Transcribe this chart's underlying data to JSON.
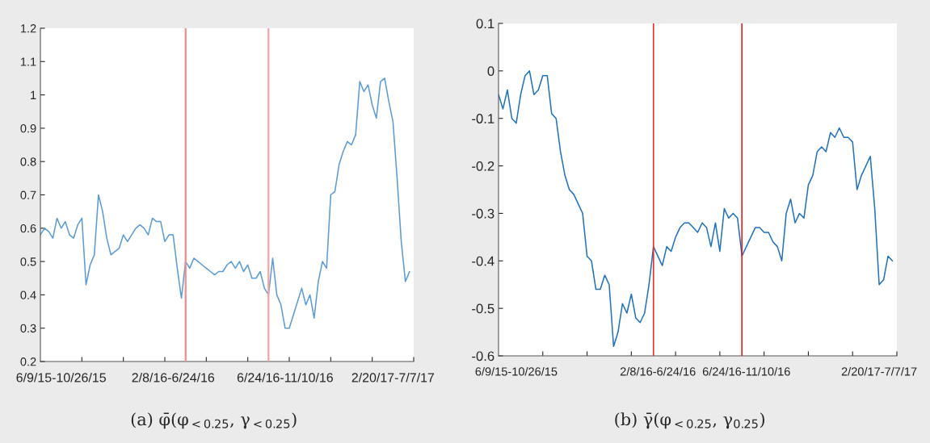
{
  "chart_data": [
    {
      "type": "line",
      "annotations": [
        "(a) φ̄(φ$_{<0.25}$, γ$_{<0.25}$)"
      ],
      "categories": [
        null,
        null,
        null,
        null,
        null,
        "6/9/15-10/26/15",
        null,
        null,
        null,
        null,
        null,
        null,
        null,
        null,
        null,
        null,
        null,
        null,
        null,
        null,
        null,
        null,
        null,
        null,
        null,
        null,
        null,
        null,
        null,
        null,
        null,
        null,
        "2/8/16-6/24/16",
        null,
        null,
        null,
        null,
        null,
        null,
        null,
        null,
        null,
        null,
        null,
        null,
        null,
        null,
        null,
        null,
        null,
        null,
        null,
        null,
        null,
        null,
        null,
        null,
        null,
        null,
        "6/24/16-11/10/16",
        null,
        null,
        null,
        null,
        null,
        null,
        null,
        null,
        null,
        null,
        null,
        null,
        null,
        null,
        null,
        null,
        null,
        null,
        null,
        null,
        null,
        null,
        null,
        null,
        null,
        "2/20/17-7/7/17",
        null,
        null,
        null,
        null
      ],
      "series": [
        {
          "color": "#5b9bd5",
          "values": [
            0.58,
            0.6,
            0.59,
            0.57,
            0.63,
            0.6,
            0.62,
            0.58,
            0.57,
            0.61,
            0.63,
            0.43,
            0.49,
            0.52,
            0.7,
            0.65,
            0.57,
            0.52,
            0.53,
            0.54,
            0.58,
            0.56,
            0.58,
            0.6,
            0.61,
            0.6,
            0.58,
            0.63,
            0.62,
            0.62,
            0.56,
            0.58,
            0.58,
            0.48,
            0.39,
            0.5,
            0.48,
            0.51,
            0.5,
            0.49,
            0.48,
            0.47,
            0.46,
            0.47,
            0.47,
            0.49,
            0.5,
            0.48,
            0.5,
            0.47,
            0.49,
            0.45,
            0.45,
            0.47,
            0.42,
            0.4,
            0.51,
            0.4,
            0.37,
            0.3,
            0.3,
            0.34,
            0.38,
            0.42,
            0.37,
            0.4,
            0.33,
            0.44,
            0.5,
            0.48,
            0.7,
            0.71,
            0.79,
            0.83,
            0.86,
            0.85,
            0.88,
            1.04,
            1.01,
            1.03,
            0.97,
            0.93,
            1.04,
            1.05,
            0.98,
            0.92,
            0.75,
            0.56,
            0.44,
            0.47
          ]
        }
      ],
      "ylim": [
        0.2,
        1.2
      ],
      "yticks": [
        0.2,
        0.3,
        0.4,
        0.5,
        0.6,
        0.7,
        0.8,
        0.9,
        1,
        1.1,
        1.2
      ],
      "grid": false,
      "line_style": "solid"
    },
    {
      "type": "line",
      "annotations": [
        "(b) γ̄(φ$_{<0.25}$, γ$_{0.25}$)"
      ],
      "categories": [
        null,
        null,
        null,
        null,
        "6/9/15-10/26/15",
        null,
        null,
        null,
        null,
        null,
        null,
        null,
        null,
        null,
        null,
        null,
        null,
        null,
        null,
        null,
        null,
        null,
        null,
        null,
        null,
        null,
        null,
        null,
        null,
        null,
        null,
        null,
        null,
        null,
        null,
        null,
        "2/8/16-6/24/16",
        null,
        null,
        null,
        null,
        null,
        null,
        null,
        null,
        null,
        null,
        null,
        null,
        null,
        null,
        null,
        null,
        null,
        null,
        null,
        "6/24/16-11/10/16",
        null,
        null,
        null,
        null,
        null,
        null,
        null,
        null,
        null,
        null,
        null,
        null,
        null,
        null,
        null,
        null,
        null,
        null,
        null,
        null,
        null,
        null,
        null,
        null,
        null,
        null,
        null,
        null,
        null,
        "2/20/17-7/7/17",
        null,
        null,
        null
      ],
      "series": [
        {
          "color": "#1f72bd",
          "values": [
            -0.05,
            -0.08,
            -0.04,
            -0.1,
            -0.11,
            -0.05,
            -0.01,
            0.0,
            -0.05,
            -0.04,
            -0.01,
            -0.01,
            -0.09,
            -0.1,
            -0.17,
            -0.22,
            -0.25,
            -0.26,
            -0.28,
            -0.3,
            -0.39,
            -0.4,
            -0.46,
            -0.46,
            -0.43,
            -0.45,
            -0.58,
            -0.55,
            -0.49,
            -0.51,
            -0.47,
            -0.52,
            -0.53,
            -0.51,
            -0.45,
            -0.37,
            -0.39,
            -0.41,
            -0.37,
            -0.38,
            -0.35,
            -0.33,
            -0.32,
            -0.32,
            -0.33,
            -0.34,
            -0.32,
            -0.33,
            -0.37,
            -0.32,
            -0.38,
            -0.29,
            -0.31,
            -0.3,
            -0.31,
            -0.39,
            -0.37,
            -0.35,
            -0.33,
            -0.33,
            -0.34,
            -0.34,
            -0.36,
            -0.37,
            -0.4,
            -0.3,
            -0.27,
            -0.32,
            -0.3,
            -0.31,
            -0.24,
            -0.22,
            -0.17,
            -0.16,
            -0.17,
            -0.13,
            -0.14,
            -0.12,
            -0.14,
            -0.14,
            -0.15,
            -0.25,
            -0.22,
            -0.2,
            -0.18,
            -0.29,
            -0.45,
            -0.44,
            -0.39,
            -0.4
          ]
        }
      ],
      "ylim": [
        -0.6,
        0.1
      ],
      "yticks": [
        -0.6,
        -0.5,
        -0.4,
        -0.3,
        -0.2,
        -0.1,
        0,
        0.1
      ],
      "grid": false,
      "line_style": "solid"
    }
  ]
}
